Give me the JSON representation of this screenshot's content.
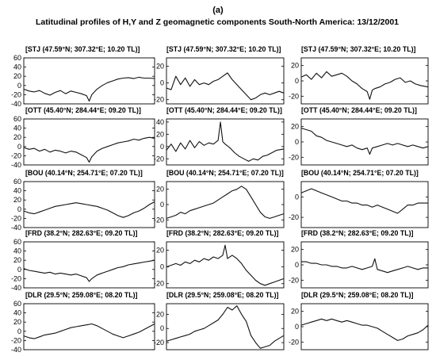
{
  "figure": {
    "panel_letter": "(a)",
    "title": "Latitudinal profiles of H,Y and Z geomagnetic components South-North America: 13/12/2001"
  },
  "chart_data": [
    {
      "type": "line",
      "title": "[STJ (47.59°N; 307.32°E; 10.20 TL)]",
      "component": "H",
      "ylim": [
        -40,
        60
      ],
      "yticks": [
        -40,
        -20,
        0,
        20,
        40,
        60
      ],
      "x": [
        0,
        4,
        8,
        12,
        16,
        20,
        24,
        28,
        32,
        36,
        40,
        44,
        48,
        50,
        52,
        56,
        60,
        64,
        68,
        72,
        76,
        80,
        84,
        88,
        92,
        96,
        100
      ],
      "y": [
        -8,
        -12,
        -14,
        -11,
        -17,
        -21,
        -15,
        -11,
        -18,
        -12,
        -15,
        -18,
        -22,
        -34,
        -20,
        -8,
        0,
        6,
        10,
        14,
        16,
        17,
        15,
        18,
        16,
        16,
        15
      ]
    },
    {
      "type": "line",
      "title": "[STJ (47.59°N; 307.32°E; 10.20 TL)]",
      "component": "Y",
      "ylim": [
        -25,
        30
      ],
      "yticks": [
        -20,
        0,
        20
      ],
      "x": [
        0,
        4,
        8,
        12,
        16,
        20,
        24,
        28,
        32,
        36,
        40,
        44,
        48,
        52,
        56,
        60,
        64,
        68,
        72,
        76,
        80,
        84,
        88,
        92,
        96,
        100
      ],
      "y": [
        -6,
        -8,
        8,
        -2,
        6,
        -4,
        4,
        -2,
        0,
        -2,
        2,
        4,
        8,
        12,
        4,
        -2,
        -8,
        -14,
        -20,
        -18,
        -14,
        -12,
        -14,
        -12,
        -10,
        -12
      ]
    },
    {
      "type": "line",
      "title": "[STJ (47.59°N; 307.32°E; 10.20 TL)]",
      "component": "Z",
      "ylim": [
        -30,
        30
      ],
      "yticks": [
        -20,
        0,
        20
      ],
      "x": [
        0,
        4,
        8,
        12,
        16,
        20,
        24,
        28,
        32,
        36,
        40,
        44,
        48,
        52,
        54,
        56,
        58,
        62,
        66,
        70,
        74,
        78,
        82,
        86,
        90,
        94,
        100
      ],
      "y": [
        5,
        8,
        2,
        10,
        4,
        12,
        6,
        8,
        10,
        6,
        0,
        -4,
        -10,
        -14,
        -24,
        -12,
        -10,
        -8,
        -4,
        -2,
        2,
        4,
        -2,
        0,
        -4,
        -6,
        -8
      ]
    },
    {
      "type": "line",
      "title": "[OTT (45.40°N; 284.44°E; 09.20 TL)]",
      "component": "H",
      "ylim": [
        -40,
        60
      ],
      "yticks": [
        -40,
        -20,
        0,
        20,
        40,
        60
      ],
      "x": [
        0,
        4,
        8,
        12,
        16,
        20,
        24,
        28,
        32,
        36,
        40,
        44,
        48,
        50,
        52,
        56,
        60,
        64,
        68,
        72,
        76,
        80,
        84,
        88,
        92,
        96,
        100
      ],
      "y": [
        -2,
        -6,
        -4,
        -10,
        -6,
        -12,
        -8,
        -10,
        -14,
        -10,
        -12,
        -18,
        -24,
        -34,
        -22,
        -10,
        -4,
        0,
        4,
        8,
        10,
        12,
        16,
        14,
        18,
        20,
        18
      ]
    },
    {
      "type": "line",
      "title": "[OTT (45.40°N; 284.44°E; 09.20 TL)]",
      "component": "Y",
      "ylim": [
        -30,
        45
      ],
      "yticks": [
        -20,
        0,
        20,
        40
      ],
      "x": [
        0,
        4,
        8,
        12,
        16,
        20,
        24,
        28,
        32,
        36,
        40,
        44,
        46,
        48,
        50,
        54,
        58,
        62,
        66,
        70,
        74,
        78,
        82,
        86,
        90,
        94,
        100
      ],
      "y": [
        -6,
        4,
        -8,
        6,
        -4,
        10,
        -2,
        8,
        2,
        6,
        4,
        10,
        40,
        8,
        4,
        -2,
        -10,
        -16,
        -20,
        -24,
        -20,
        -22,
        -16,
        -14,
        -10,
        -6,
        -4
      ]
    },
    {
      "type": "line",
      "title": "[OTT (45.40°N; 284.44°E; 09.20 TL)]",
      "component": "Z",
      "ylim": [
        -30,
        30
      ],
      "yticks": [
        -20,
        0,
        20
      ],
      "x": [
        0,
        4,
        8,
        12,
        16,
        20,
        24,
        28,
        32,
        36,
        40,
        44,
        48,
        52,
        54,
        56,
        60,
        64,
        68,
        72,
        76,
        80,
        84,
        88,
        92,
        96,
        100
      ],
      "y": [
        18,
        16,
        14,
        8,
        6,
        2,
        0,
        -2,
        -4,
        -6,
        -4,
        -8,
        -10,
        -8,
        -16,
        -8,
        -6,
        -4,
        -2,
        -4,
        -2,
        -4,
        -6,
        -4,
        -6,
        -8,
        -6
      ]
    },
    {
      "type": "line",
      "title": "[BOU (40.14°N; 254.71°E; 07.20 TL)]",
      "component": "H",
      "ylim": [
        -40,
        60
      ],
      "yticks": [
        -40,
        -20,
        0,
        20,
        40,
        60
      ],
      "x": [
        0,
        4,
        8,
        12,
        16,
        20,
        24,
        28,
        32,
        36,
        40,
        44,
        48,
        52,
        56,
        60,
        64,
        68,
        72,
        76,
        80,
        84,
        88,
        92,
        96,
        100
      ],
      "y": [
        -4,
        -8,
        -10,
        -6,
        -2,
        2,
        6,
        8,
        10,
        12,
        14,
        12,
        10,
        8,
        6,
        2,
        -2,
        -8,
        -14,
        -18,
        -14,
        -8,
        -4,
        2,
        10,
        16
      ]
    },
    {
      "type": "line",
      "title": "[BOU (40.14°N; 254.71°E; 07.20 TL)]",
      "component": "Y",
      "ylim": [
        -30,
        30
      ],
      "yticks": [
        -20,
        0,
        20
      ],
      "x": [
        0,
        4,
        8,
        12,
        16,
        20,
        24,
        28,
        32,
        36,
        40,
        44,
        48,
        52,
        56,
        60,
        64,
        68,
        72,
        76,
        80,
        84,
        88,
        92,
        96,
        100
      ],
      "y": [
        -18,
        -16,
        -14,
        -10,
        -12,
        -8,
        -6,
        -4,
        -2,
        0,
        2,
        6,
        10,
        14,
        18,
        20,
        24,
        20,
        10,
        0,
        -10,
        -16,
        -18,
        -16,
        -14,
        -12
      ]
    },
    {
      "type": "line",
      "title": "[BOU (40.14°N; 254.71°E; 07.20 TL)]",
      "component": "Z",
      "ylim": [
        -30,
        15
      ],
      "yticks": [
        -20,
        0
      ],
      "x": [
        0,
        4,
        8,
        12,
        16,
        20,
        24,
        28,
        32,
        36,
        40,
        44,
        48,
        52,
        56,
        60,
        64,
        68,
        72,
        76,
        80,
        84,
        88,
        92,
        96,
        100
      ],
      "y": [
        4,
        6,
        8,
        6,
        4,
        2,
        0,
        -2,
        -4,
        -4,
        -6,
        -6,
        -8,
        -8,
        -10,
        -8,
        -10,
        -12,
        -14,
        -16,
        -12,
        -8,
        -8,
        -6,
        -6,
        -6
      ]
    },
    {
      "type": "line",
      "title": "[FRD (38.2°N; 282.63°E; 09.20 TL)]",
      "component": "H",
      "ylim": [
        -40,
        60
      ],
      "yticks": [
        -40,
        -20,
        0,
        20,
        40,
        60
      ],
      "x": [
        0,
        4,
        8,
        12,
        16,
        20,
        24,
        28,
        32,
        36,
        40,
        44,
        48,
        50,
        52,
        56,
        60,
        64,
        68,
        72,
        76,
        80,
        84,
        88,
        92,
        96,
        100
      ],
      "y": [
        2,
        -2,
        -4,
        -6,
        -8,
        -6,
        -10,
        -8,
        -10,
        -12,
        -10,
        -14,
        -18,
        -26,
        -20,
        -12,
        -8,
        -4,
        0,
        4,
        6,
        10,
        12,
        14,
        16,
        18,
        20
      ]
    },
    {
      "type": "line",
      "title": "[FRD (38.2°N; 282.63°E; 09.20 TL)]",
      "component": "Y",
      "ylim": [
        -25,
        30
      ],
      "yticks": [
        -20,
        0,
        20
      ],
      "x": [
        0,
        4,
        8,
        12,
        16,
        20,
        24,
        28,
        32,
        36,
        40,
        44,
        48,
        50,
        52,
        56,
        60,
        64,
        68,
        72,
        76,
        80,
        84,
        88,
        92,
        96,
        100
      ],
      "y": [
        0,
        2,
        4,
        2,
        6,
        4,
        8,
        6,
        10,
        8,
        12,
        10,
        14,
        26,
        10,
        14,
        10,
        4,
        -4,
        -10,
        -16,
        -20,
        -22,
        -20,
        -18,
        -16,
        -14
      ]
    },
    {
      "type": "line",
      "title": "[FRD (38.2°N; 282.63°E; 09.20 TL)]",
      "component": "Z",
      "ylim": [
        -30,
        30
      ],
      "yticks": [
        -20,
        0,
        20
      ],
      "x": [
        0,
        4,
        8,
        12,
        16,
        20,
        24,
        28,
        32,
        36,
        40,
        44,
        48,
        52,
        56,
        58,
        60,
        64,
        68,
        72,
        76,
        80,
        84,
        88,
        92,
        96,
        100
      ],
      "y": [
        4,
        4,
        2,
        2,
        0,
        0,
        -2,
        -2,
        -4,
        -4,
        -2,
        -4,
        -6,
        -4,
        -2,
        8,
        -6,
        -8,
        -10,
        -8,
        -6,
        -4,
        -2,
        -4,
        -6,
        -4,
        -4
      ]
    },
    {
      "type": "line",
      "title": "[DLR (29.5°N; 259.08°E; 08.20 TL)]",
      "component": "H",
      "ylim": [
        -40,
        60
      ],
      "yticks": [
        -40,
        -20,
        0,
        20,
        40,
        60
      ],
      "x": [
        0,
        4,
        8,
        12,
        16,
        20,
        24,
        28,
        32,
        36,
        40,
        44,
        48,
        52,
        56,
        60,
        64,
        68,
        72,
        76,
        80,
        84,
        88,
        92,
        96,
        100
      ],
      "y": [
        -10,
        -14,
        -16,
        -12,
        -8,
        -6,
        -4,
        0,
        4,
        8,
        10,
        12,
        14,
        16,
        12,
        6,
        0,
        -6,
        -10,
        -14,
        -10,
        -6,
        -2,
        4,
        10,
        16
      ]
    },
    {
      "type": "line",
      "title": "[DLR (29.5°N; 259.08°E; 08.20 TL)]",
      "component": "Y",
      "ylim": [
        -30,
        35
      ],
      "yticks": [
        -20,
        0,
        20
      ],
      "x": [
        0,
        4,
        8,
        12,
        16,
        20,
        24,
        28,
        32,
        36,
        40,
        44,
        48,
        52,
        56,
        60,
        64,
        68,
        72,
        76,
        80,
        84,
        88,
        92,
        96,
        100
      ],
      "y": [
        -18,
        -16,
        -14,
        -12,
        -10,
        -8,
        -4,
        -2,
        0,
        4,
        8,
        12,
        20,
        30,
        26,
        32,
        20,
        10,
        -10,
        -20,
        -28,
        -26,
        -24,
        -18,
        -14,
        -10
      ]
    },
    {
      "type": "line",
      "title": "[DLR (29.5°N; 259.08°E; 08.20 TL)]",
      "component": "Z",
      "ylim": [
        -30,
        30
      ],
      "yticks": [
        -20,
        0,
        20
      ],
      "x": [
        0,
        4,
        8,
        12,
        16,
        20,
        24,
        28,
        32,
        36,
        40,
        44,
        48,
        52,
        56,
        60,
        64,
        68,
        72,
        76,
        80,
        84,
        88,
        92,
        96,
        100
      ],
      "y": [
        2,
        4,
        6,
        8,
        10,
        8,
        10,
        8,
        6,
        8,
        6,
        4,
        2,
        2,
        0,
        -2,
        -6,
        -10,
        -14,
        -18,
        -16,
        -12,
        -10,
        -8,
        -4,
        2
      ]
    }
  ]
}
